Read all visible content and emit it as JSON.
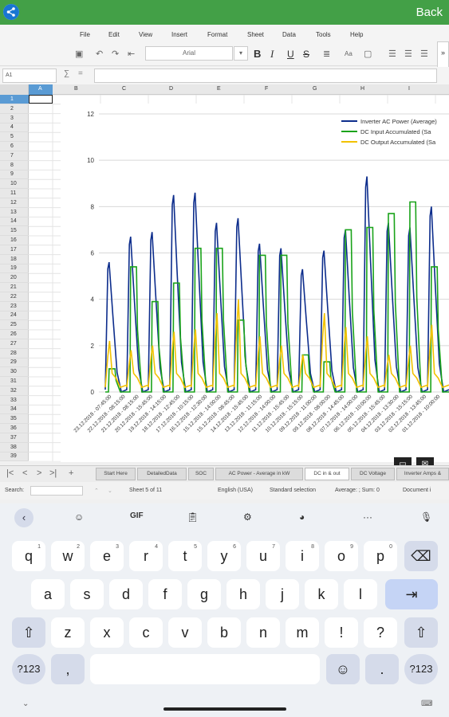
{
  "app": {
    "back_label": "Back"
  },
  "menu": [
    "File",
    "Edit",
    "View",
    "Insert",
    "Format",
    "Sheet",
    "Data",
    "Tools",
    "Help"
  ],
  "toolbar": {
    "font_name": "Arial",
    "bold": "B",
    "italic": "I",
    "underline": "U",
    "strike": "S",
    "text_case": "Aa"
  },
  "name_box": "A1",
  "sum_symbol": "∑",
  "function_symbol": "=",
  "columns": [
    "A",
    "B",
    "C",
    "D",
    "E",
    "F",
    "G",
    "H",
    "I"
  ],
  "rows": [
    "1",
    "2",
    "3",
    "4",
    "5",
    "6",
    "7",
    "8",
    "9",
    "10",
    "11",
    "12",
    "13",
    "14",
    "15",
    "16",
    "17",
    "18",
    "19",
    "20",
    "21",
    "22",
    "23",
    "24",
    "25",
    "26",
    "27",
    "28",
    "29",
    "30",
    "31",
    "32",
    "33",
    "34",
    "35",
    "36",
    "37",
    "38",
    "39"
  ],
  "chart_data": {
    "type": "line",
    "ylim": [
      0,
      12
    ],
    "yticks": [
      "0",
      "2",
      "4",
      "6",
      "8",
      "10",
      "12"
    ],
    "categories": [
      "23.12.2018 - 07:45:00",
      "22.12.2018 - 08:15:00",
      "21.12.2018 - 08:15:00",
      "20.12.2018 - 15:45:00",
      "19.12.2018 - 14:15:00",
      "18.12.2018 - 12:45:00",
      "17.12.2018 - 10:15:00",
      "16.12.2018 - 12:30:00",
      "15.12.2018 - 14:00:00",
      "15.12.2018 - 08:45:00",
      "14.12.2018 - 15:45:00",
      "13.12.2018 - 11:15:00",
      "12.12.2018 - 14:00:00",
      "11.12.2018 - 15:45:00",
      "10.12.2018 - 15:15:00",
      "09.12.2018 - 11:00:00",
      "09.12.2018 - 08:00:00",
      "08.12.2018 - 14:45:00",
      "07.12.2018 - 14:00:00",
      "06.12.2018 - 10:00:00",
      "05.12.2018 - 15:45:00",
      "04.12.2018 - 13:30:00",
      "03.12.2018 - 15:15:00",
      "02.12.2018 - 13:45:00",
      "01.12.2018 - 10:00:00"
    ],
    "series": [
      {
        "name": "Inverter AC Power (Average)",
        "color": "#0d2d8c",
        "peaks": [
          5.6,
          6.7,
          6.9,
          8.5,
          8.6,
          7.3,
          7.5,
          6.4,
          6.2,
          5.3,
          6.1,
          7.0,
          9.3,
          7.3,
          7.1,
          8.0
        ]
      },
      {
        "name": "DC Input Accumulated (Sa",
        "color": "#1aa31a",
        "peaks": [
          1.0,
          5.4,
          3.9,
          4.7,
          6.2,
          6.2,
          3.1,
          5.9,
          5.9,
          1.6,
          1.3,
          7.0,
          7.1,
          7.7,
          8.2,
          5.4
        ]
      },
      {
        "name": "DC Output Accumulated (Sa",
        "color": "#f2c200",
        "peaks": [
          2.2,
          1.8,
          2.0,
          2.6,
          2.7,
          3.4,
          4.0,
          2.4,
          2.0,
          1.6,
          3.4,
          2.8,
          2.4,
          1.6,
          2.0,
          2.9
        ]
      }
    ]
  },
  "sheet_tabs": [
    "Start Here",
    "DetailedData",
    "SOC",
    "AC Power - Average in kW",
    "DC in & out",
    "DC Voltage",
    "Inverter Amps &"
  ],
  "tab_add": "+",
  "status": {
    "search_label": "Search:",
    "sheet_info": "Sheet 5 of 11",
    "language": "English (USA)",
    "selection_mode": "Standard selection",
    "summary": "Average: ; Sum: 0",
    "doc_status": "Document i"
  },
  "keyboard_toolbar": {
    "gif": "GIF",
    "more": "···"
  },
  "keyboard": {
    "row1": [
      {
        "k": "q",
        "s": "1"
      },
      {
        "k": "w",
        "s": "2"
      },
      {
        "k": "e",
        "s": "3"
      },
      {
        "k": "r",
        "s": "4"
      },
      {
        "k": "t",
        "s": "5"
      },
      {
        "k": "y",
        "s": "6"
      },
      {
        "k": "u",
        "s": "7"
      },
      {
        "k": "i",
        "s": "8"
      },
      {
        "k": "o",
        "s": "9"
      },
      {
        "k": "p",
        "s": "0"
      }
    ],
    "row2": [
      "a",
      "s",
      "d",
      "f",
      "g",
      "h",
      "j",
      "k",
      "l"
    ],
    "row3": [
      "z",
      "x",
      "c",
      "v",
      "b",
      "n",
      "m",
      "!",
      "?"
    ],
    "sym_label": "?123",
    "comma": ",",
    "period": "."
  }
}
